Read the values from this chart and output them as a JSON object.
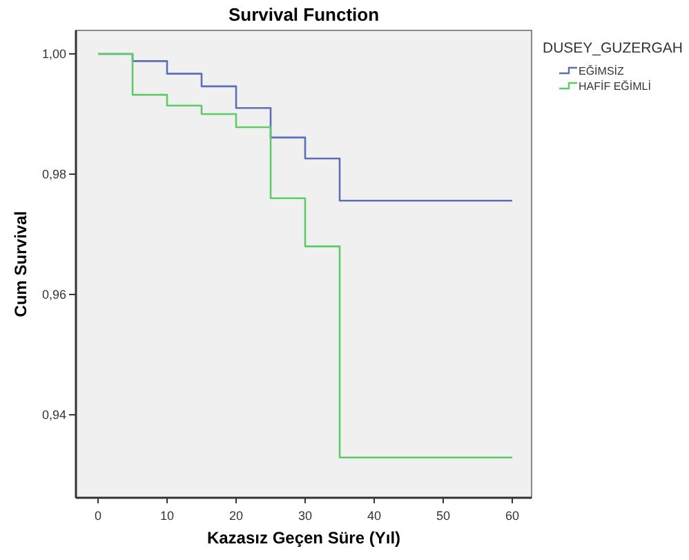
{
  "chart_data": {
    "type": "step",
    "title": "Survival Function",
    "xlabel": "Kazasız Geçen Süre (Yıl)",
    "ylabel": "Cum Survival",
    "legend_title": "DUSEY_GUZERGAH",
    "legend": "right",
    "grid": false,
    "xlim": [
      -3.2,
      62.8
    ],
    "xticks": [
      0,
      10,
      20,
      30,
      40,
      50,
      60
    ],
    "ylim": [
      0.9262,
      1.0039
    ],
    "yticks": [
      {
        "value": 0.94,
        "label": "0,94"
      },
      {
        "value": 0.96,
        "label": "0,96"
      },
      {
        "value": 0.98,
        "label": "0,98"
      },
      {
        "value": 1,
        "label": "1,00"
      }
    ],
    "x": [
      0,
      5,
      10,
      15,
      20,
      25,
      30,
      35,
      60
    ],
    "series": [
      {
        "name": "EĞİMSİZ",
        "color": "#5a6eb9",
        "values": [
          1,
          0.9988,
          0.9967,
          0.9946,
          0.991,
          0.9861,
          0.9826,
          0.9756,
          0.9756
        ]
      },
      {
        "name": "HAFİF EĞİMLİ",
        "color": "#5ccc66",
        "values": [
          1,
          0.9932,
          0.9914,
          0.99,
          0.9878,
          0.976,
          0.968,
          0.9329,
          0.9329
        ]
      }
    ]
  }
}
